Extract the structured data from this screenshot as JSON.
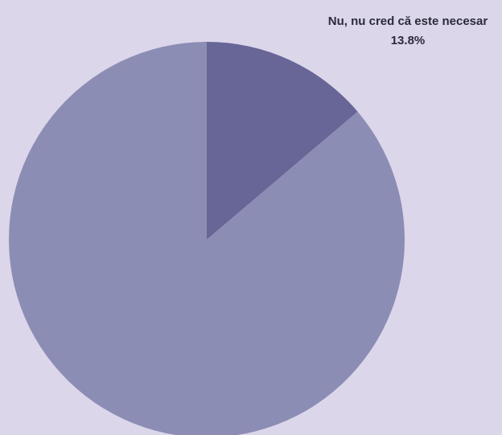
{
  "chart_data": {
    "type": "pie",
    "slices": [
      {
        "label": "Nu, nu cred că este necesar",
        "value": 13.8,
        "value_label": "13.8%",
        "color": "#686597"
      },
      {
        "label": "",
        "value": 86.2,
        "value_label": "",
        "color": "#8c8db4"
      }
    ],
    "start_angle_deg": 0,
    "direction": "clockwise",
    "legend": "none"
  },
  "background": "#dcd6ea"
}
